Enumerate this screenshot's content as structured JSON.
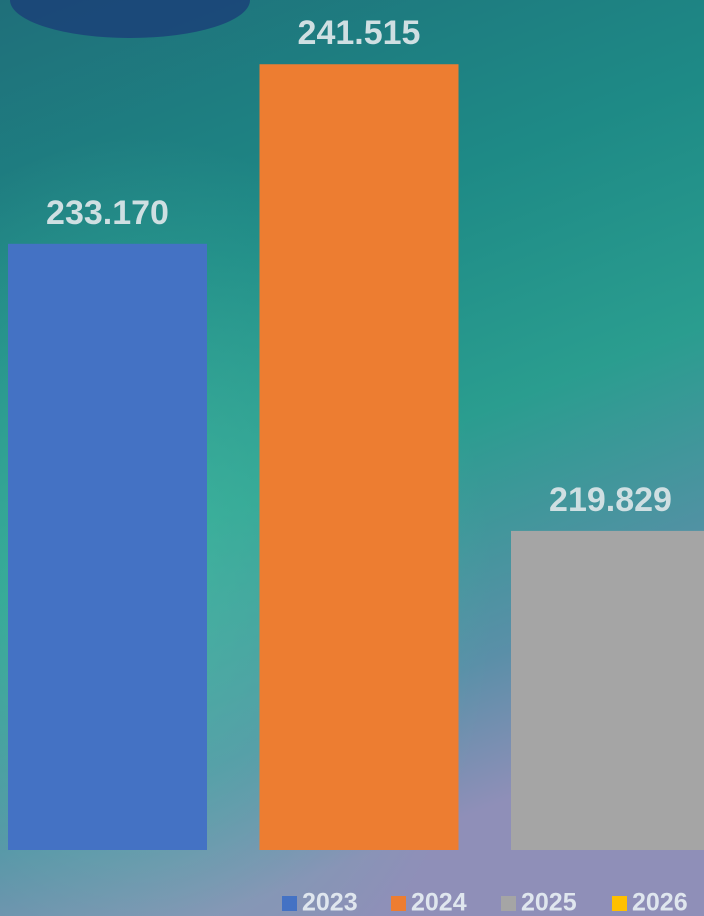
{
  "chart_data": {
    "type": "bar",
    "series": [
      {
        "name": "2023",
        "color": "#4472c4",
        "values": [
          233170
        ],
        "value_labels": [
          "233.170"
        ]
      },
      {
        "name": "2024",
        "color": "#ed7d31",
        "values": [
          241515
        ],
        "value_labels": [
          "241.515"
        ]
      },
      {
        "name": "2025",
        "color": "#a5a5a5",
        "values": [
          219829
        ],
        "value_labels": [
          "219.829"
        ]
      },
      {
        "name": "2026",
        "color": "#ffc000",
        "values": [
          null
        ]
      }
    ],
    "ylim": [
      205000,
      244500
    ],
    "legend": "bottom"
  }
}
